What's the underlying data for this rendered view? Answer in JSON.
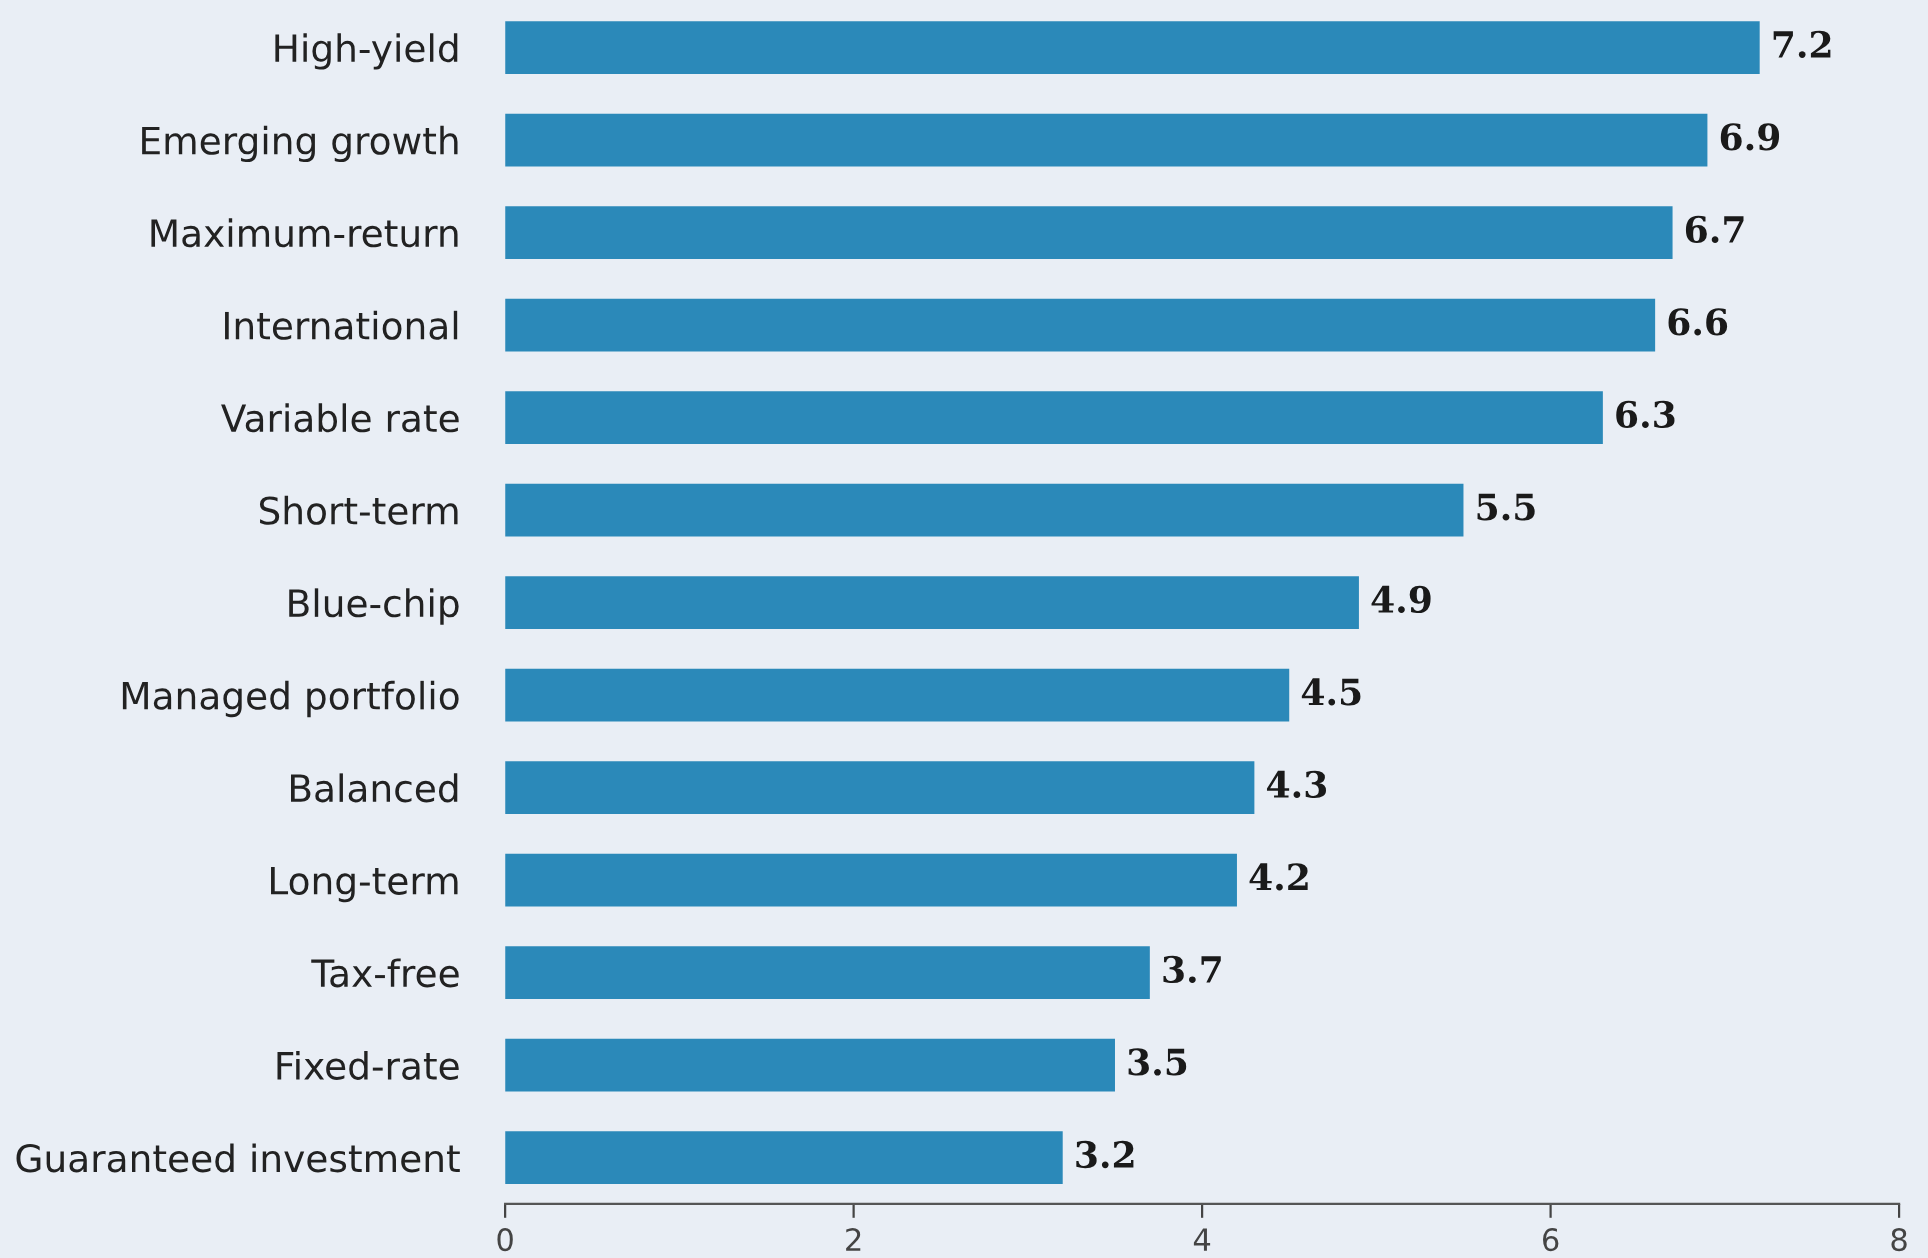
{
  "chart_data": {
    "type": "bar",
    "orientation": "horizontal",
    "categories": [
      "High-yield",
      "Emerging growth",
      "Maximum-return",
      "International",
      "Variable rate",
      "Short-term",
      "Blue-chip",
      "Managed portfolio",
      "Balanced",
      "Long-term",
      "Tax-free",
      "Fixed-rate",
      "Guaranteed investment"
    ],
    "values": [
      7.2,
      6.9,
      6.7,
      6.6,
      6.3,
      5.5,
      4.9,
      4.5,
      4.3,
      4.2,
      3.7,
      3.5,
      3.2
    ],
    "color": "#2b89b9",
    "xlim": [
      0,
      8
    ],
    "xticks": [
      0,
      2,
      4,
      6,
      8
    ],
    "data_labels": true,
    "grid": false,
    "legend": false
  }
}
